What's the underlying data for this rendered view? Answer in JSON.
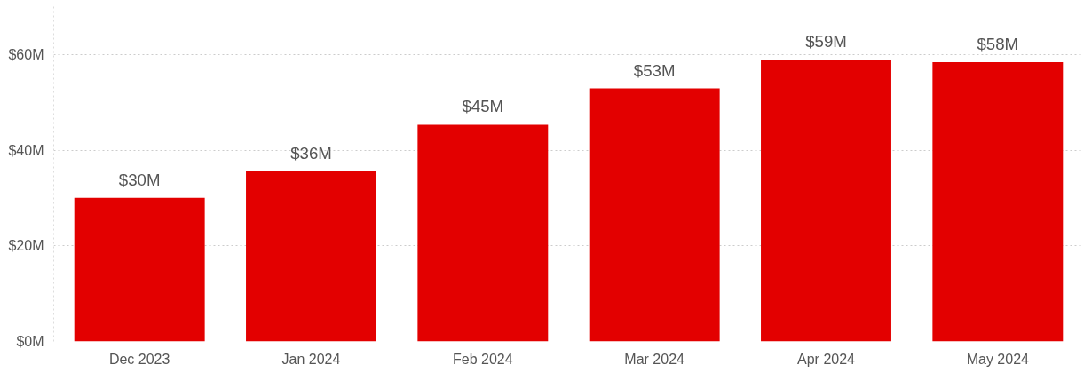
{
  "chart_data": {
    "type": "bar",
    "categories": [
      "Dec 2023",
      "Jan 2024",
      "Feb 2024",
      "Mar 2024",
      "Apr 2024",
      "May 2024"
    ],
    "values": [
      30.1,
      35.6,
      45.4,
      53,
      59,
      58.5
    ],
    "value_labels": [
      "$30M",
      "$36M",
      "$45M",
      "$53M",
      "$59M",
      "$58M"
    ],
    "color": "#e30000",
    "ylim": [
      0,
      70.5
    ],
    "yticks": [
      {
        "value": 0,
        "label": "$0M"
      },
      {
        "value": 20,
        "label": "$20M"
      },
      {
        "value": 40,
        "label": "$40M"
      },
      {
        "value": 60,
        "label": "$60M"
      }
    ],
    "grid": "y"
  }
}
